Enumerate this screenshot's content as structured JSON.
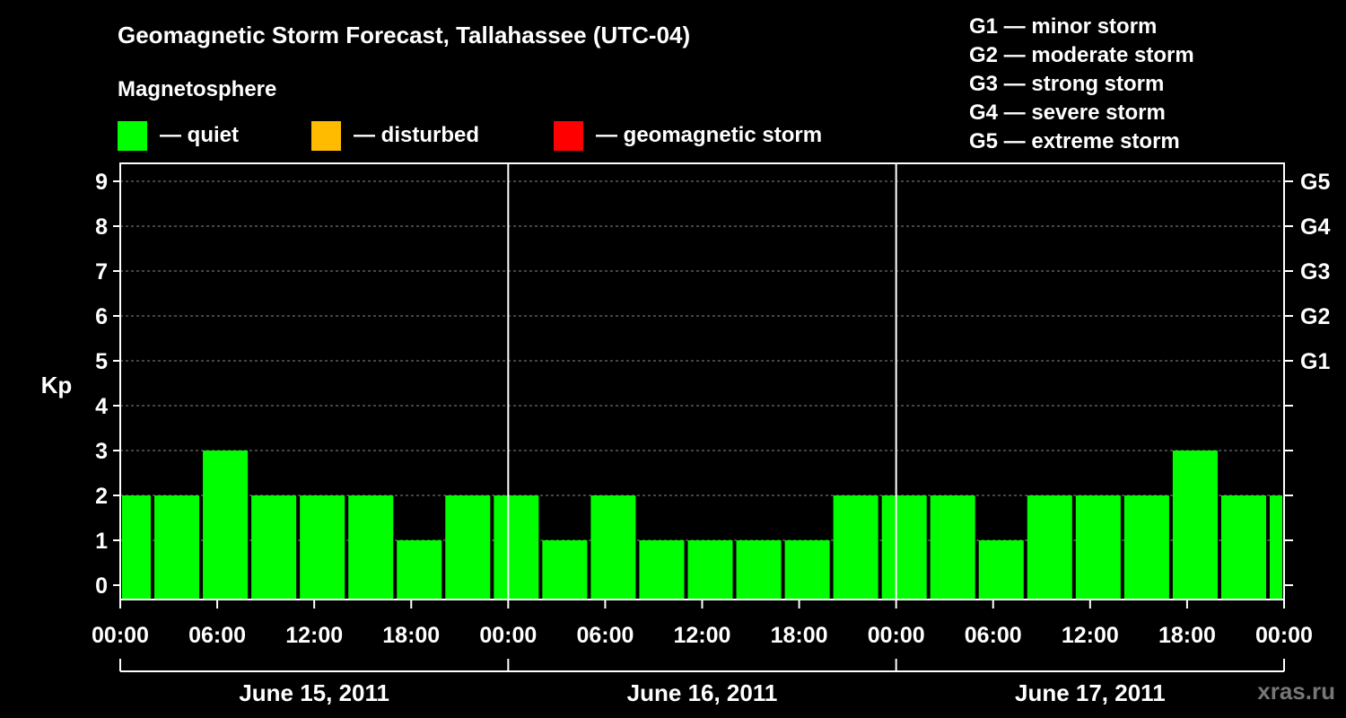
{
  "header": {
    "title": "Geomagnetic Storm Forecast, Tallahassee (UTC-04)",
    "magnetosphere_label": "Magnetosphere"
  },
  "legend": [
    {
      "label": "— quiet",
      "color": "#00ff00"
    },
    {
      "label": "— disturbed",
      "color": "#ffbb00"
    },
    {
      "label": "— geomagnetic storm",
      "color": "#ff0000"
    }
  ],
  "g_scale": [
    "G1 — minor storm",
    "G2 — moderate storm",
    "G3 — strong storm",
    "G4 — severe storm",
    "G5 — extreme storm"
  ],
  "watermark": "xras.ru",
  "chart_data": {
    "type": "bar",
    "ylabel": "Kp",
    "ylim": [
      0,
      9
    ],
    "yticks": [
      "0",
      "1",
      "2",
      "3",
      "4",
      "5",
      "6",
      "7",
      "8",
      "9"
    ],
    "right_axis_labels": [
      {
        "kp": 5,
        "label": "G1"
      },
      {
        "kp": 6,
        "label": "G2"
      },
      {
        "kp": 7,
        "label": "G3"
      },
      {
        "kp": 8,
        "label": "G4"
      },
      {
        "kp": 9,
        "label": "G5"
      }
    ],
    "xtick_labels": [
      "00:00",
      "06:00",
      "12:00",
      "18:00",
      "00:00",
      "06:00",
      "12:00",
      "18:00",
      "00:00",
      "06:00",
      "12:00",
      "18:00",
      "00:00"
    ],
    "days": [
      "June 15, 2011",
      "June 16, 2011",
      "June 17, 2011"
    ],
    "grid": "dashed horizontal",
    "series": [
      {
        "color": "#00ff00",
        "bars": [
          {
            "start_hour": 0,
            "end_hour": 2,
            "kp": 2
          },
          {
            "start_hour": 2,
            "end_hour": 5,
            "kp": 2
          },
          {
            "start_hour": 5,
            "end_hour": 8,
            "kp": 3
          },
          {
            "start_hour": 8,
            "end_hour": 11,
            "kp": 2
          },
          {
            "start_hour": 11,
            "end_hour": 14,
            "kp": 2
          },
          {
            "start_hour": 14,
            "end_hour": 17,
            "kp": 2
          },
          {
            "start_hour": 17,
            "end_hour": 20,
            "kp": 1
          },
          {
            "start_hour": 20,
            "end_hour": 23,
            "kp": 2
          },
          {
            "start_hour": 23,
            "end_hour": 26,
            "kp": 2
          },
          {
            "start_hour": 26,
            "end_hour": 29,
            "kp": 1
          },
          {
            "start_hour": 29,
            "end_hour": 32,
            "kp": 2
          },
          {
            "start_hour": 32,
            "end_hour": 35,
            "kp": 1
          },
          {
            "start_hour": 35,
            "end_hour": 38,
            "kp": 1
          },
          {
            "start_hour": 38,
            "end_hour": 41,
            "kp": 1
          },
          {
            "start_hour": 41,
            "end_hour": 44,
            "kp": 1
          },
          {
            "start_hour": 44,
            "end_hour": 47,
            "kp": 2
          },
          {
            "start_hour": 47,
            "end_hour": 50,
            "kp": 2
          },
          {
            "start_hour": 50,
            "end_hour": 53,
            "kp": 2
          },
          {
            "start_hour": 53,
            "end_hour": 56,
            "kp": 1
          },
          {
            "start_hour": 56,
            "end_hour": 59,
            "kp": 2
          },
          {
            "start_hour": 59,
            "end_hour": 62,
            "kp": 2
          },
          {
            "start_hour": 62,
            "end_hour": 65,
            "kp": 2
          },
          {
            "start_hour": 65,
            "end_hour": 68,
            "kp": 3
          },
          {
            "start_hour": 68,
            "end_hour": 71,
            "kp": 2
          },
          {
            "start_hour": 71,
            "end_hour": 72,
            "kp": 2
          }
        ]
      }
    ]
  }
}
